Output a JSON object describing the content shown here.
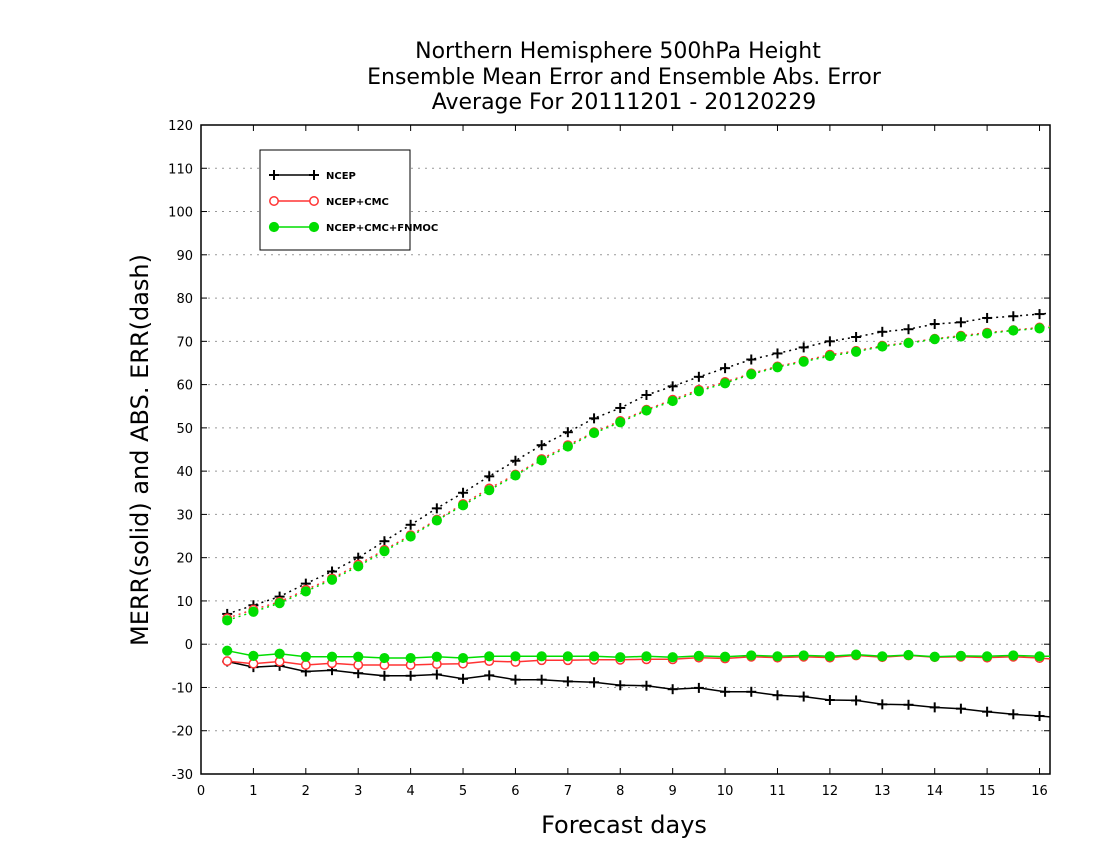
{
  "chart_data": {
    "type": "line",
    "title": [
      "Northern Hemisphere 500hPa Height",
      "Ensemble Mean Error and Ensemble Abs. Error",
      "Average For 20111201 - 20120229"
    ],
    "xlabel": "Forecast days",
    "ylabel": "MERR(solid) and ABS. ERR(dash)",
    "xlim": [
      0,
      16.2
    ],
    "ylim": [
      -30,
      120
    ],
    "xticks": [
      0,
      1,
      2,
      3,
      4,
      5,
      6,
      7,
      8,
      9,
      10,
      11,
      12,
      13,
      14,
      15,
      16
    ],
    "yticks": [
      -30,
      -20,
      -10,
      0,
      10,
      20,
      30,
      40,
      50,
      60,
      70,
      80,
      90,
      100,
      110,
      120
    ],
    "grid": true,
    "legend_position": "top-left",
    "x": [
      0.5,
      1,
      1.5,
      2,
      2.5,
      3,
      3.5,
      4,
      4.5,
      5,
      5.5,
      6,
      6.5,
      7,
      7.5,
      8,
      8.5,
      9,
      9.5,
      10,
      10.5,
      11,
      11.5,
      12,
      12.5,
      13,
      13.5,
      14,
      14.5,
      15,
      15.5,
      16,
      16.2
    ],
    "series": [
      {
        "name": "NCEP",
        "color": "#000000",
        "marker": "plus",
        "style": "solid",
        "metric": "MERR",
        "values": [
          -4,
          -5.3,
          -5,
          -6.3,
          -6,
          -6.7,
          -7.3,
          -7.3,
          -7,
          -8,
          -7.2,
          -8.2,
          -8.2,
          -8.6,
          -8.8,
          -9.5,
          -9.6,
          -10.4,
          -10.1,
          -11,
          -11,
          -11.8,
          -12.1,
          -12.9,
          -13,
          -13.9,
          -14,
          -14.6,
          -14.9,
          -15.6,
          -16.2,
          -16.6,
          -16.8
        ]
      },
      {
        "name": "NCEP+CMC",
        "color": "#ff3333",
        "marker": "open-circle",
        "style": "solid",
        "metric": "MERR",
        "values": [
          -3.9,
          -4.5,
          -4,
          -4.8,
          -4.4,
          -4.8,
          -4.8,
          -4.8,
          -4.6,
          -4.5,
          -3.9,
          -4.1,
          -3.7,
          -3.7,
          -3.6,
          -3.6,
          -3.5,
          -3.5,
          -3.1,
          -3.3,
          -2.9,
          -3.1,
          -2.9,
          -3.1,
          -2.6,
          -3,
          -2.6,
          -3,
          -2.9,
          -3.1,
          -2.9,
          -3.2,
          -3.4
        ]
      },
      {
        "name": "NCEP+CMC+FNMOC",
        "color": "#00dd00",
        "marker": "filled-circle",
        "style": "solid",
        "metric": "MERR",
        "values": [
          -1.5,
          -2.7,
          -2.2,
          -2.9,
          -2.9,
          -2.9,
          -3.2,
          -3.2,
          -2.9,
          -3.2,
          -2.8,
          -2.8,
          -2.8,
          -2.8,
          -2.8,
          -3,
          -2.8,
          -3,
          -2.7,
          -2.9,
          -2.6,
          -2.8,
          -2.6,
          -2.8,
          -2.4,
          -2.8,
          -2.5,
          -2.9,
          -2.7,
          -2.8,
          -2.6,
          -2.8,
          -2.8
        ]
      },
      {
        "name": "NCEP",
        "color": "#000000",
        "marker": "plus",
        "style": "dash",
        "metric": "ABS. ERR",
        "values": [
          7,
          9,
          11,
          14,
          16.8,
          20,
          23.8,
          27.6,
          31.4,
          35,
          38.8,
          42.4,
          46,
          49,
          52.2,
          54.6,
          57.6,
          59.6,
          61.8,
          63.8,
          65.8,
          67.2,
          68.6,
          70,
          71,
          72.2,
          72.8,
          74,
          74.4,
          75.4,
          75.8,
          76.3,
          76.5
        ]
      },
      {
        "name": "NCEP+CMC",
        "color": "#ff3333",
        "marker": "open-circle",
        "style": "dash",
        "metric": "ABS. ERR",
        "values": [
          6,
          8,
          9.8,
          12.6,
          15.2,
          18.4,
          21.8,
          25.2,
          28.8,
          32.4,
          36,
          39.2,
          42.8,
          46,
          49,
          51.6,
          54.2,
          56.5,
          58.8,
          60.6,
          62.6,
          64.2,
          65.5,
          66.9,
          67.8,
          69,
          69.7,
          70.6,
          71.3,
          72,
          72.6,
          73.2,
          73.5
        ]
      },
      {
        "name": "NCEP+CMC+FNMOC",
        "color": "#00dd00",
        "marker": "filled-circle",
        "style": "dash",
        "metric": "ABS. ERR",
        "values": [
          5.5,
          7.5,
          9.5,
          12.2,
          14.9,
          18,
          21.5,
          24.9,
          28.6,
          32.1,
          35.6,
          39,
          42.5,
          45.7,
          48.8,
          51.3,
          54,
          56.2,
          58.5,
          60.3,
          62.4,
          64,
          65.3,
          66.6,
          67.6,
          68.8,
          69.6,
          70.5,
          71.1,
          71.8,
          72.5,
          73,
          73.2
        ]
      }
    ],
    "legend": [
      {
        "label": "NCEP",
        "color": "#000000",
        "marker": "plus"
      },
      {
        "label": "NCEP+CMC",
        "color": "#ff3333",
        "marker": "open-circle"
      },
      {
        "label": "NCEP+CMC+FNMOC",
        "color": "#00dd00",
        "marker": "filled-circle"
      }
    ]
  }
}
